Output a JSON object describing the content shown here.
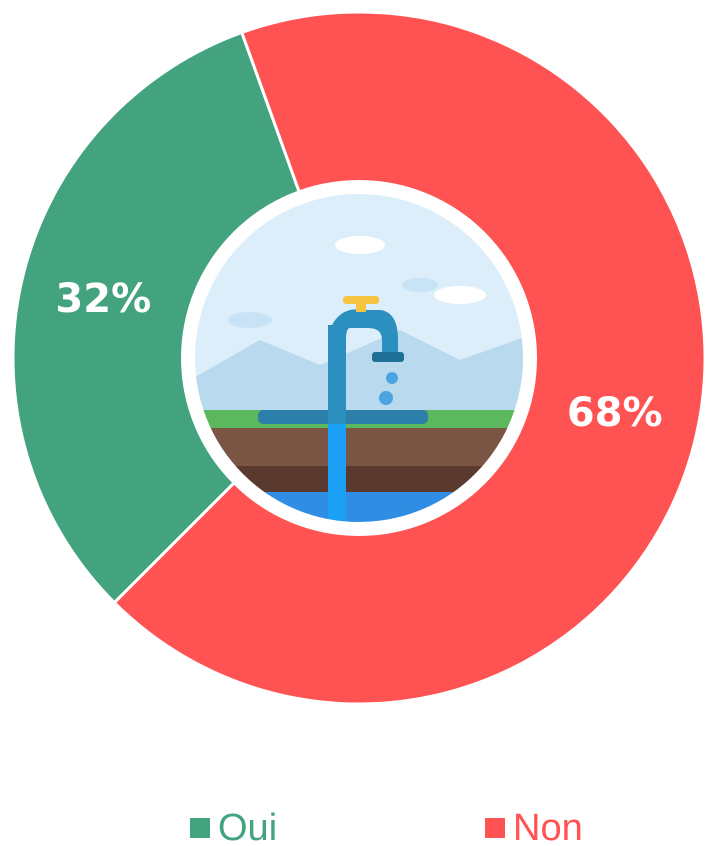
{
  "chart_data": {
    "type": "donut",
    "categories": [
      "Oui",
      "Non"
    ],
    "values": [
      32,
      68
    ],
    "value_labels": [
      "32%",
      "68%"
    ],
    "colors": [
      "#43a37f",
      "#ff5252"
    ]
  }
}
